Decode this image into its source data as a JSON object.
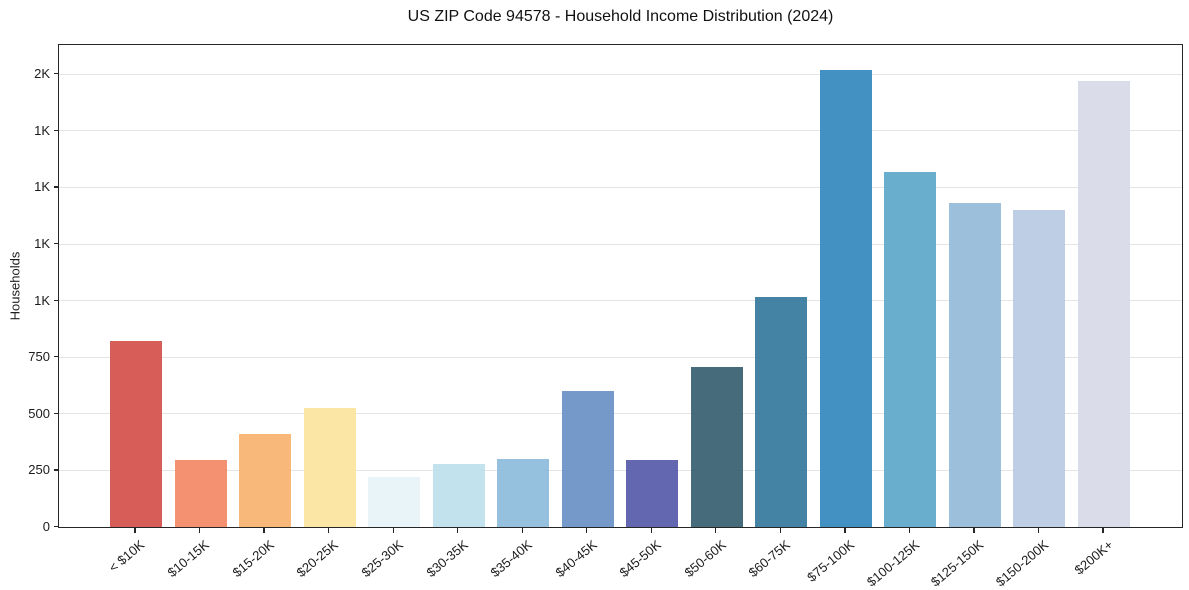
{
  "chart_data": {
    "type": "bar",
    "title": "US ZIP Code 94578 - Household Income Distribution (2024)",
    "xlabel": "",
    "ylabel": "Households",
    "categories": [
      "< $10K",
      "$10-15K",
      "$15-20K",
      "$20-25K",
      "$25-30K",
      "$30-35K",
      "$35-40K",
      "$40-45K",
      "$45-50K",
      "$50-60K",
      "$60-75K",
      "$75-100K",
      "$100-125K",
      "$125-150K",
      "$150-200K",
      "$200K+"
    ],
    "values": [
      820,
      295,
      410,
      525,
      220,
      280,
      300,
      600,
      295,
      705,
      1015,
      2020,
      1570,
      1430,
      1400,
      1970
    ],
    "bar_colors": [
      "#d4514b",
      "#f28965",
      "#f8b370",
      "#fbe49e",
      "#e7f3f7",
      "#bde0ec",
      "#8ebcdb",
      "#6a91c4",
      "#565baa",
      "#386071",
      "#367a9d",
      "#3489bd",
      "#5fa8c9",
      "#94bbd9",
      "#b9cae3",
      "#d8d9e7"
    ],
    "yticks": [
      {
        "value": 0,
        "label": "0"
      },
      {
        "value": 250,
        "label": "250"
      },
      {
        "value": 500,
        "label": "500"
      },
      {
        "value": 750,
        "label": "750"
      },
      {
        "value": 1000,
        "label": "1K"
      },
      {
        "value": 1250,
        "label": "1K"
      },
      {
        "value": 1500,
        "label": "1K"
      },
      {
        "value": 1750,
        "label": "1K"
      },
      {
        "value": 2000,
        "label": "2K"
      }
    ],
    "ylim": [
      0,
      2125
    ],
    "grid": "horizontal",
    "legend_position": "none",
    "x_label_rotation_deg": 40
  },
  "style": {
    "background": "#ffffff",
    "spine_color": "#262626",
    "grid_color": "#e4e4e4",
    "text_color": "#1c1c1c"
  }
}
